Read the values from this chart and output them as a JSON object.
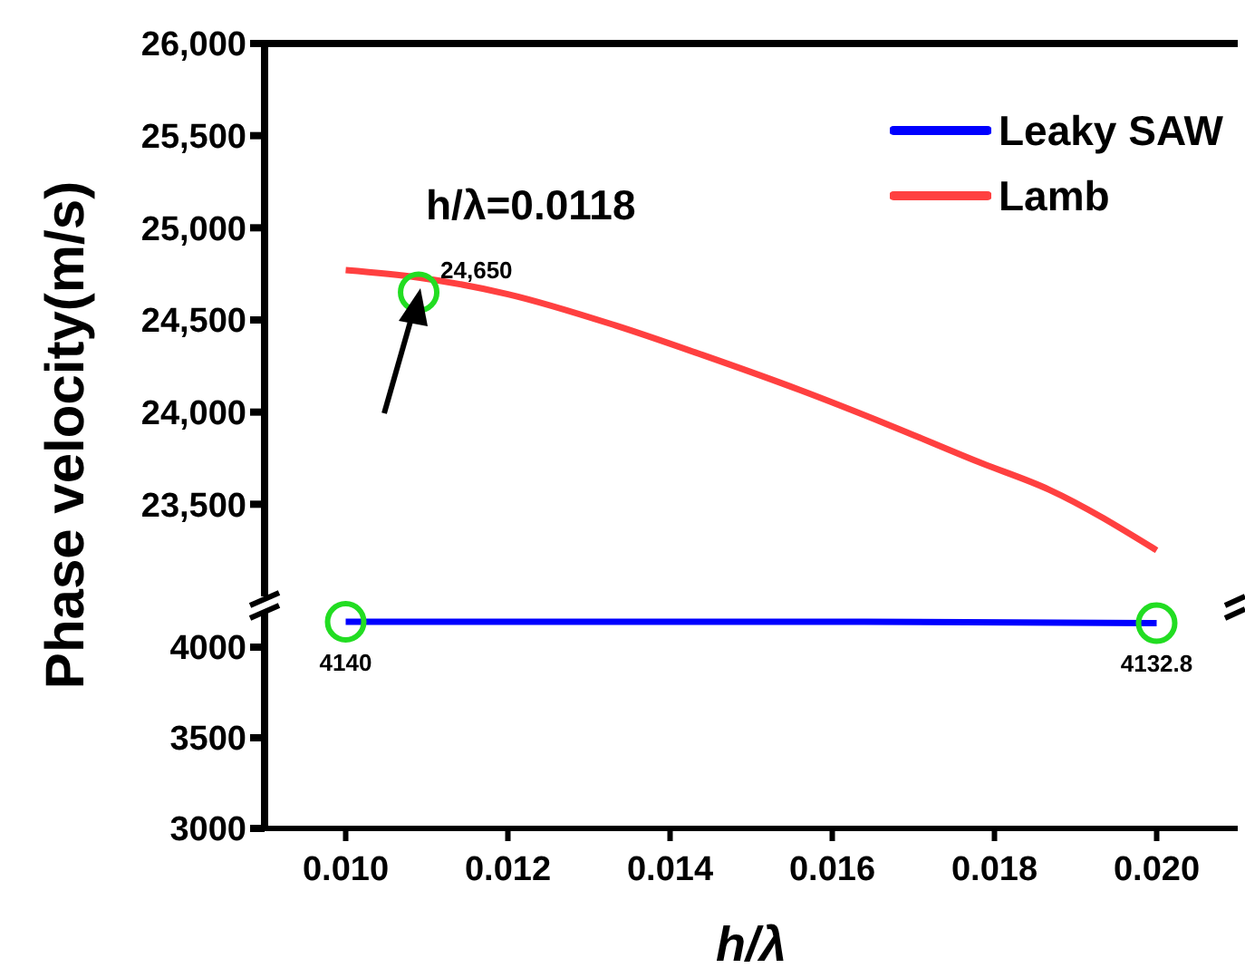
{
  "chart_data": [
    {
      "type": "line",
      "ylabel": "Phase velocity(m/s)",
      "xlim": [
        0.009,
        0.021
      ],
      "ylim": [
        23000,
        26000
      ],
      "yticks": [
        {
          "value": 23500,
          "label": "23,500"
        },
        {
          "value": 24000,
          "label": "24,000"
        },
        {
          "value": 24500,
          "label": "24,500"
        },
        {
          "value": 25000,
          "label": "25,000"
        },
        {
          "value": 25500,
          "label": "25,500"
        },
        {
          "value": 26000,
          "label": "26,000"
        }
      ],
      "tick_labels": "y",
      "legend": "top right",
      "series": [
        {
          "name": "Lamb",
          "color": "#ff4040",
          "x": [
            0.01,
            0.0109,
            0.012,
            0.01333,
            0.0144,
            0.0156,
            0.0167,
            0.0178,
            0.01867,
            0.02
          ],
          "values": [
            24770,
            24730,
            24640,
            24470,
            24310,
            24120,
            23930,
            23730,
            23580,
            23250
          ]
        }
      ],
      "annotations": [
        "h/λ=0.0118",
        {
          "text": "24,650",
          "x": 0.0109,
          "y": 24650
        }
      ]
    },
    {
      "type": "line",
      "xlabel": "h/λ",
      "xlim": [
        0.009,
        0.021
      ],
      "xticks": [
        {
          "value": 0.01,
          "label": "0.010"
        },
        {
          "value": 0.012,
          "label": "0.012"
        },
        {
          "value": 0.014,
          "label": "0.014"
        },
        {
          "value": 0.016,
          "label": "0.016"
        },
        {
          "value": 0.018,
          "label": "0.018"
        },
        {
          "value": 0.02,
          "label": "0.020"
        }
      ],
      "ylim": [
        3000,
        4200
      ],
      "yticks": [
        3000,
        3500,
        4000
      ],
      "series": [
        {
          "name": "Leaky SAW",
          "color": "#0000ff",
          "x": [
            0.01,
            0.0164,
            0.02
          ],
          "values": [
            4140,
            4140,
            4132.8
          ]
        }
      ],
      "annotations": [
        {
          "text": "4140",
          "x": 0.01,
          "y": 4140
        },
        {
          "text": "4132.8",
          "x": 0.02,
          "y": 4132.8
        }
      ]
    }
  ]
}
